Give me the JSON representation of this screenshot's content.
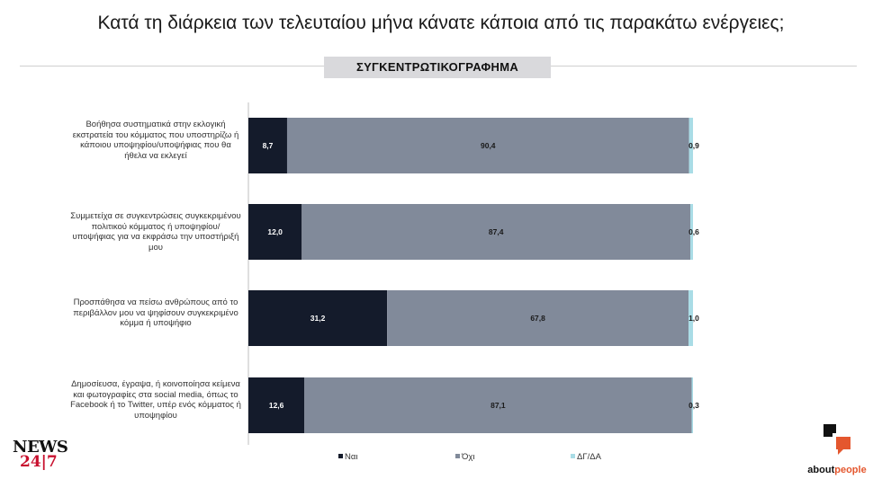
{
  "header": {
    "title": "Κατά τη διάρκεια των τελευταίου μήνα κάνατε κάποια από τις παρακάτω ενέργειες;",
    "subtitle": "ΣΥΓΚΕΝΤΡΩΤΙΚΟΓΡΑΦΗΜΑ"
  },
  "chart_data": {
    "type": "bar",
    "orientation": "horizontal",
    "stacked": true,
    "categories": [
      "Βοήθησα συστηματικά στην εκλογική εκστρατεία του κόμματος που υποστηρίζω ή κάποιου υποψηφίου/υποψήφιας που θα ήθελα να εκλεγεί",
      "Συμμετείχα σε συγκεντρώσεις συγκεκριμένου πολιτικού κόμματος ή υποψηφίου/υποψήφιας για να εκφράσω την υποστήριξή μου",
      "Προσπάθησα να πείσω ανθρώπους από το περιβάλλον μου να ψηφίσουν συγκεκριμένο κόμμα ή υποψήφιο",
      "Δημοσίευσα, έγραψα, ή κοινοποίησα κείμενα και φωτογραφίες  στα social media, όπως το Facebook ή το Twitter, υπέρ ενός κόμματος ή υποψηφίου"
    ],
    "series": [
      {
        "name": "Ναι",
        "values": [
          8.7,
          12.0,
          31.2,
          12.6
        ],
        "labels": [
          "8,7",
          "12,0",
          "31,2",
          "12,6"
        ],
        "color": "#141b2b",
        "label_color": "#ffffff"
      },
      {
        "name": "Όχι",
        "values": [
          90.4,
          87.4,
          67.8,
          87.1
        ],
        "labels": [
          "90,4",
          "87,4",
          "67,8",
          "87,1"
        ],
        "color": "#818a9a",
        "label_color": "#1a1a1a"
      },
      {
        "name": "ΔΓ/ΔΑ",
        "values": [
          0.9,
          0.6,
          1.0,
          0.3
        ],
        "labels": [
          "0,9",
          "0,6",
          "1,0",
          "0,3"
        ],
        "color": "#a9dce6",
        "label_color": "#1a1a1a"
      }
    ],
    "xlim": [
      0,
      100
    ],
    "grid": false,
    "legend_position": "bottom"
  },
  "logos": {
    "left_line1": "NEWS",
    "left_line2": "24|7",
    "right_text_a": "about",
    "right_text_b": "people"
  }
}
